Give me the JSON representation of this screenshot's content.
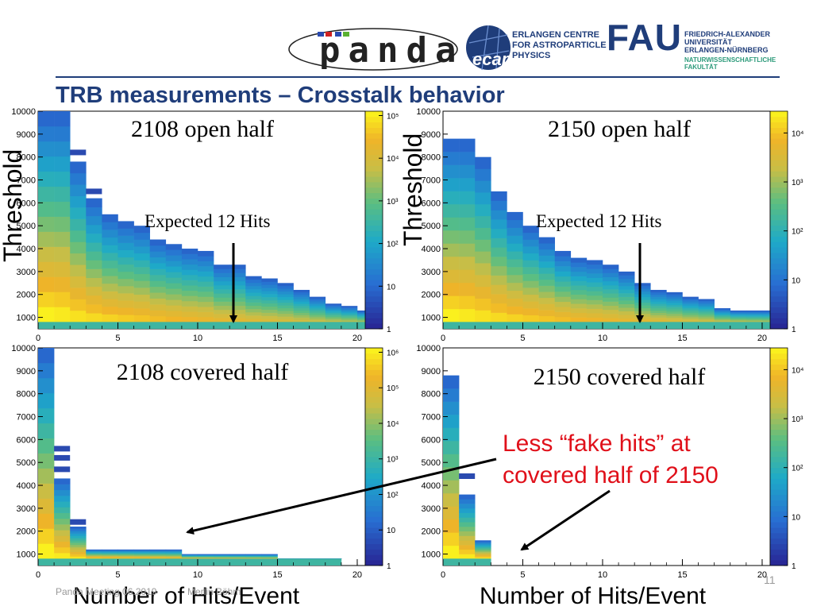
{
  "slide": {
    "title": "TRB measurements – Crosstalk behavior",
    "page_number": "11",
    "footer": {
      "meeting": "Panda Meeting 06.2019",
      "author": "Merlin Böhm"
    }
  },
  "logos": {
    "panda": {
      "text": "panda"
    },
    "ecap": {
      "badge": "ecap",
      "line1": "ERLANGEN CENTRE",
      "line2": "FOR ASTROPARTICLE",
      "line3": "PHYSICS"
    },
    "fau": {
      "mark": "FAU",
      "line1": "FRIEDRICH-ALEXANDER",
      "line2": "UNIVERSITÄT",
      "line3": "ERLANGEN-NÜRNBERG",
      "line4": "NATURWISSENSCHAFTLICHE",
      "line5": "FAKULTÄT"
    }
  },
  "labels": {
    "threshold": "Threshold",
    "xaxis": "Number of Hits/Event",
    "expected": "Expected 12 Hits",
    "less_fake_line1": "Less “fake hits” at",
    "less_fake_line2": "covered half of 2150"
  },
  "colors": {
    "title": "#1f3d7a",
    "annotation": "#e0101a"
  },
  "chart_data": [
    {
      "type": "heatmap",
      "title": "2108 open half",
      "x_ticks": [
        "0",
        "5",
        "10",
        "15",
        "20"
      ],
      "y_ticks": [
        "1000",
        "2000",
        "3000",
        "4000",
        "5000",
        "6000",
        "7000",
        "8000",
        "9000",
        "10000"
      ],
      "z_ticks": [
        "1",
        "10",
        "10²",
        "10³",
        "10⁴",
        "10⁵"
      ],
      "xlim": [
        0,
        20.5
      ],
      "ylim": [
        500,
        10000
      ],
      "z_scale": "log",
      "columns": [
        {
          "x": 0,
          "top": 10000
        },
        {
          "x": 1,
          "top": 10000
        },
        {
          "x": 2,
          "top": 7800,
          "stray": [
            8200
          ]
        },
        {
          "x": 3,
          "top": 6200,
          "stray": [
            6500
          ]
        },
        {
          "x": 4,
          "top": 5500
        },
        {
          "x": 5,
          "top": 5200
        },
        {
          "x": 6,
          "top": 5000
        },
        {
          "x": 7,
          "top": 4400
        },
        {
          "x": 8,
          "top": 4200
        },
        {
          "x": 9,
          "top": 4000
        },
        {
          "x": 10,
          "top": 3900
        },
        {
          "x": 11,
          "top": 3300
        },
        {
          "x": 12,
          "top": 3300
        },
        {
          "x": 13,
          "top": 2800
        },
        {
          "x": 14,
          "top": 2700
        },
        {
          "x": 15,
          "top": 2500
        },
        {
          "x": 16,
          "top": 2200
        },
        {
          "x": 17,
          "top": 1900
        },
        {
          "x": 18,
          "top": 1600
        },
        {
          "x": 19,
          "top": 1500
        },
        {
          "x": 20,
          "top": 1300
        }
      ]
    },
    {
      "type": "heatmap",
      "title": "2150 open half",
      "x_ticks": [
        "0",
        "5",
        "10",
        "15",
        "20"
      ],
      "y_ticks": [
        "1000",
        "2000",
        "3000",
        "4000",
        "5000",
        "6000",
        "7000",
        "8000",
        "9000",
        "10000"
      ],
      "z_ticks": [
        "1",
        "10",
        "10²",
        "10³",
        "10⁴"
      ],
      "xlim": [
        0,
        20.5
      ],
      "ylim": [
        500,
        10000
      ],
      "z_scale": "log",
      "columns": [
        {
          "x": 0,
          "top": 8800
        },
        {
          "x": 1,
          "top": 8800
        },
        {
          "x": 2,
          "top": 8000
        },
        {
          "x": 3,
          "top": 6500
        },
        {
          "x": 4,
          "top": 5600
        },
        {
          "x": 5,
          "top": 5000
        },
        {
          "x": 6,
          "top": 4500
        },
        {
          "x": 7,
          "top": 3900
        },
        {
          "x": 8,
          "top": 3600
        },
        {
          "x": 9,
          "top": 3500
        },
        {
          "x": 10,
          "top": 3300
        },
        {
          "x": 11,
          "top": 3000
        },
        {
          "x": 12,
          "top": 2500
        },
        {
          "x": 13,
          "top": 2200
        },
        {
          "x": 14,
          "top": 2100
        },
        {
          "x": 15,
          "top": 1900
        },
        {
          "x": 16,
          "top": 1800
        },
        {
          "x": 17,
          "top": 1400
        },
        {
          "x": 18,
          "top": 1300
        },
        {
          "x": 19,
          "top": 1300
        },
        {
          "x": 20,
          "top": 1300
        }
      ]
    },
    {
      "type": "heatmap",
      "title": "2108 covered half",
      "x_ticks": [
        "0",
        "5",
        "10",
        "15",
        "20"
      ],
      "y_ticks": [
        "1000",
        "2000",
        "3000",
        "4000",
        "5000",
        "6000",
        "7000",
        "8000",
        "9000",
        "10000"
      ],
      "z_ticks": [
        "1",
        "10",
        "10²",
        "10³",
        "10⁴",
        "10⁵",
        "10⁶"
      ],
      "xlim": [
        0,
        20.5
      ],
      "ylim": [
        500,
        10000
      ],
      "z_scale": "log",
      "columns": [
        {
          "x": 0,
          "top": 10000
        },
        {
          "x": 1,
          "top": 4300,
          "stray": [
            4700,
            5200,
            5600
          ]
        },
        {
          "x": 2,
          "top": 2200,
          "stray": [
            2400
          ]
        },
        {
          "x": 3,
          "top": 1200
        },
        {
          "x": 4,
          "top": 1200
        },
        {
          "x": 5,
          "top": 1200
        },
        {
          "x": 6,
          "top": 1200
        },
        {
          "x": 7,
          "top": 1200
        },
        {
          "x": 8,
          "top": 1200
        },
        {
          "x": 9,
          "top": 1000
        },
        {
          "x": 10,
          "top": 1000
        },
        {
          "x": 11,
          "top": 1000
        },
        {
          "x": 12,
          "top": 1000
        },
        {
          "x": 13,
          "top": 1000
        },
        {
          "x": 14,
          "top": 1000
        },
        {
          "x": 15,
          "top": 800
        },
        {
          "x": 16,
          "top": 800
        },
        {
          "x": 17,
          "top": 800
        },
        {
          "x": 18,
          "top": 800
        }
      ]
    },
    {
      "type": "heatmap",
      "title": "2150 covered half",
      "x_ticks": [
        "0",
        "5",
        "10",
        "15",
        "20"
      ],
      "y_ticks": [
        "1000",
        "2000",
        "3000",
        "4000",
        "5000",
        "6000",
        "7000",
        "8000",
        "9000",
        "10000"
      ],
      "z_ticks": [
        "1",
        "10",
        "10²",
        "10³",
        "10⁴"
      ],
      "xlim": [
        0,
        20.5
      ],
      "ylim": [
        500,
        10000
      ],
      "z_scale": "log",
      "columns": [
        {
          "x": 0,
          "top": 8800
        },
        {
          "x": 1,
          "top": 3600,
          "stray": [
            4400
          ]
        },
        {
          "x": 2,
          "top": 1600
        }
      ]
    }
  ]
}
